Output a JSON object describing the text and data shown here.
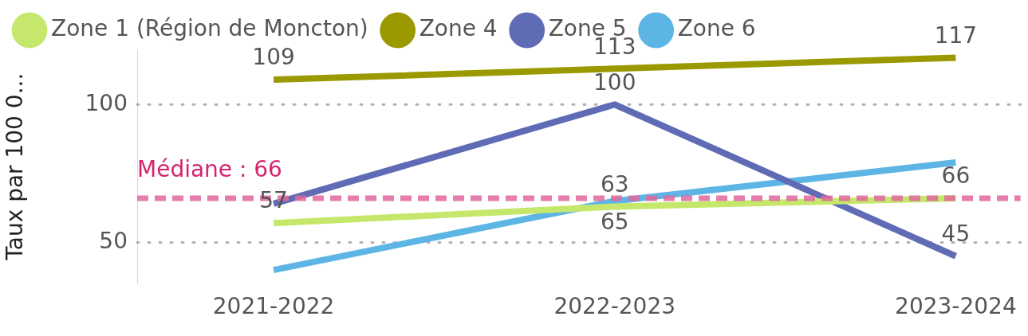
{
  "chart_data": {
    "type": "line",
    "ylabel": "Taux par 100 0...",
    "categories": [
      "2021-2022",
      "2022-2023",
      "2023-2024"
    ],
    "series": [
      {
        "name": "Zone 1 (Région de Moncton)",
        "color": "#c5e86c",
        "values": [
          57,
          63,
          66
        ],
        "value_labels": [
          "57",
          "63",
          "66"
        ]
      },
      {
        "name": "Zone 4",
        "color": "#9a9a00",
        "values": [
          109,
          113,
          117
        ],
        "value_labels": [
          "109",
          "113",
          "117"
        ]
      },
      {
        "name": "Zone 5",
        "color": "#5f6bb5",
        "values": [
          64,
          100,
          45
        ],
        "value_labels": [
          null,
          "100",
          "45"
        ]
      },
      {
        "name": "Zone 6",
        "color": "#5db5e5",
        "values": [
          40,
          65,
          79
        ],
        "value_labels": [
          null,
          "65",
          null
        ]
      }
    ],
    "ylim": [
      35,
      120
    ],
    "yticks": [
      50,
      100
    ],
    "grid": "y",
    "legend": "top left",
    "marker": "none",
    "line_style": "solid",
    "ref_lines": [
      {
        "axis": "y",
        "value": 66,
        "label": "Médiane : 66",
        "color": "#e0679c",
        "line_style": "dashed"
      }
    ]
  }
}
